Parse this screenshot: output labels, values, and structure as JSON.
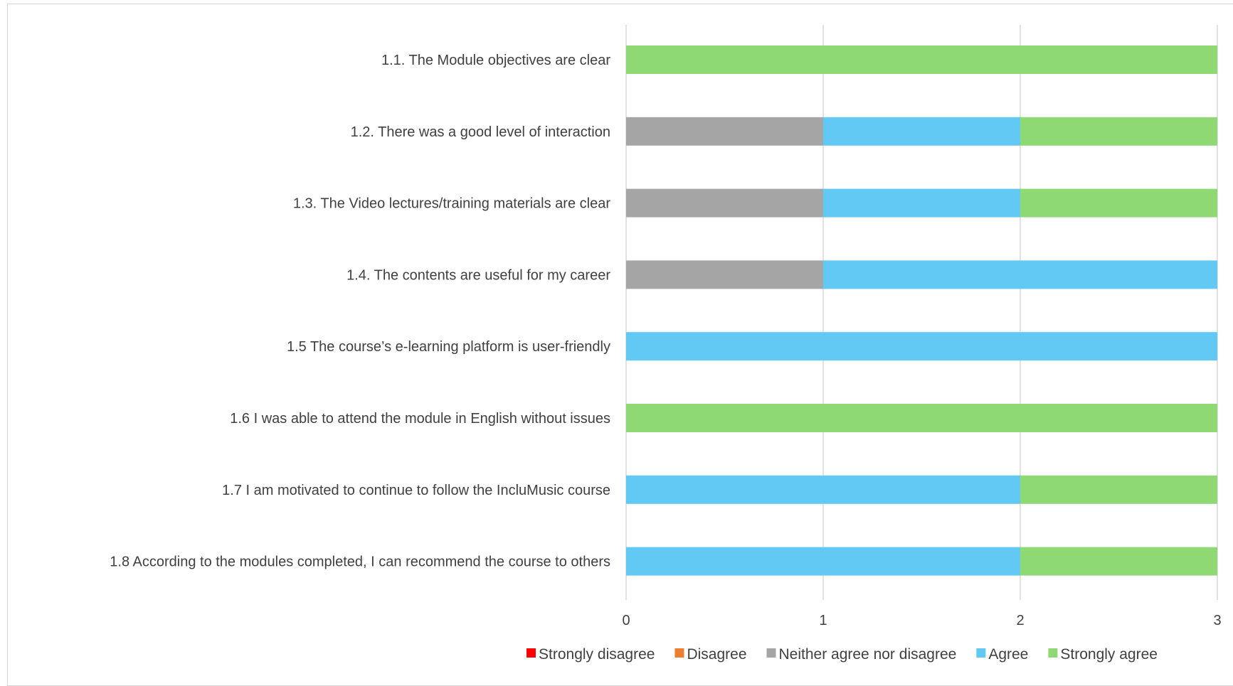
{
  "chart_data": {
    "type": "bar",
    "orientation": "horizontal",
    "stacked": true,
    "title": "",
    "xlabel": "",
    "ylabel": "",
    "xlim": [
      0,
      3
    ],
    "x_ticks": [
      0,
      1,
      2,
      3
    ],
    "grid": "vertical",
    "legend_position": "bottom",
    "categories": [
      "1.1. The Module objectives are clear",
      "1.2. There was a good level of interaction",
      "1.3. The Video lectures/training materials are clear",
      "1.4. The contents are useful for my career",
      "1.5 The course’s e-learning platform is user-friendly",
      "1.6 I was able to attend the module in English without issues",
      "1.7 I am motivated to continue to follow the IncluMusic course",
      "1.8 According to the modules completed, I can recommend the course to others"
    ],
    "series": [
      {
        "name": "Strongly disagree",
        "color": "#ff0000",
        "values": [
          0,
          0,
          0,
          0,
          0,
          0,
          0,
          0
        ]
      },
      {
        "name": "Disagree",
        "color": "#ed7d31",
        "values": [
          0,
          0,
          0,
          0,
          0,
          0,
          0,
          0
        ]
      },
      {
        "name": "Neither agree nor disagree",
        "color": "#a5a5a5",
        "values": [
          0,
          1,
          1,
          1,
          0,
          0,
          0,
          0
        ]
      },
      {
        "name": "Agree",
        "color": "#62c9f5",
        "values": [
          0,
          1,
          1,
          2,
          3,
          0,
          2,
          2
        ]
      },
      {
        "name": "Strongly agree",
        "color": "#8fd975",
        "values": [
          3,
          1,
          1,
          0,
          0,
          3,
          1,
          1
        ]
      }
    ]
  }
}
